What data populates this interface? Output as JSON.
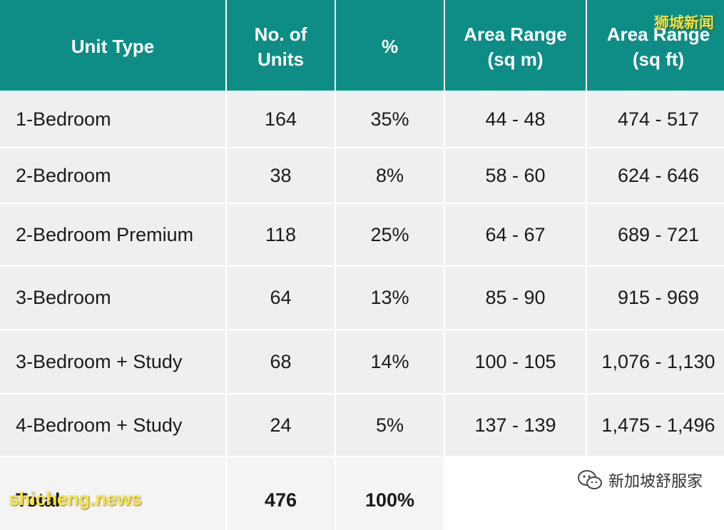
{
  "table": {
    "headers": [
      [
        "Unit Type"
      ],
      [
        "No. of",
        "Units"
      ],
      [
        "%"
      ],
      [
        "Area Range",
        "(sq m)"
      ],
      [
        "Area Range",
        "(sq ft)"
      ]
    ],
    "rows": [
      [
        "1-Bedroom",
        "164",
        "35%",
        "44 - 48",
        "474 - 517"
      ],
      [
        "2-Bedroom",
        "38",
        "8%",
        "58 - 60",
        "624 - 646"
      ],
      [
        "2-Bedroom Premium",
        "118",
        "25%",
        "64 - 67",
        "689 - 721"
      ],
      [
        "3-Bedroom",
        "64",
        "13%",
        "85 - 90",
        "915 - 969"
      ],
      [
        "3-Bedroom + Study",
        "68",
        "14%",
        "100 - 105",
        "1,076 - 1,130"
      ],
      [
        "4-Bedroom + Study",
        "24",
        "5%",
        "137 - 139",
        "1,475 - 1,496"
      ]
    ],
    "total": [
      "Total",
      "476",
      "100%",
      "",
      ""
    ]
  },
  "watermarks": {
    "top_right": "狮城新闻",
    "bottom_left": "shicheng.news",
    "brand": "新加坡舒服家"
  },
  "colors": {
    "header_bg": "#0e8d87",
    "header_text": "#ffffff",
    "cell_bg": "#efefef",
    "watermark_yellow": "#f2e23a"
  },
  "icons": {
    "brand": "wechat-icon"
  }
}
